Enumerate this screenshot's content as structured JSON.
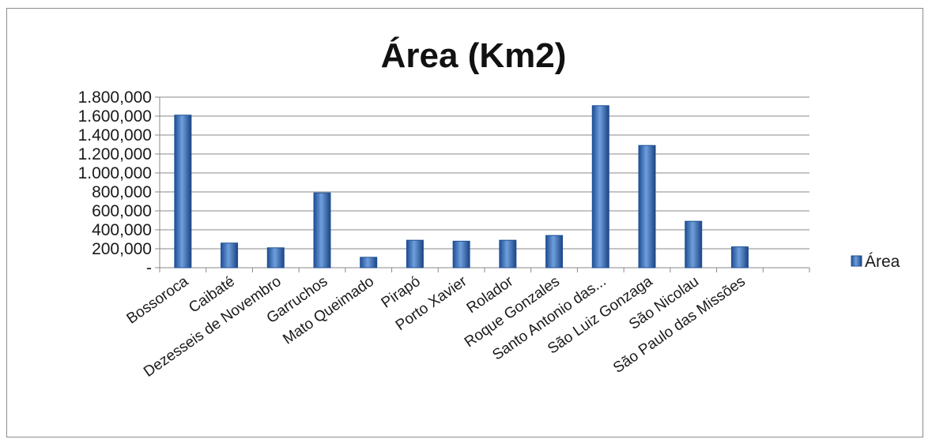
{
  "chart_data": {
    "type": "bar",
    "title": "Área (Km2)",
    "xlabel": "",
    "ylabel": "",
    "ylim": [
      0,
      1800000
    ],
    "grid": true,
    "legend_position": "right",
    "y_ticks": [
      0,
      200000,
      400000,
      600000,
      800000,
      1000000,
      1200000,
      1400000,
      1600000,
      1800000
    ],
    "y_tick_labels": [
      "-",
      "200,000",
      "400,000",
      "600,000",
      "800,000",
      "1.000,000",
      "1.200,000",
      "1.400,000",
      "1.600,000",
      "1.800,000"
    ],
    "categories": [
      "Bossoroca",
      "Caibaté",
      "Dezesseis de Novembro",
      "Garruchos",
      "Mato Queimado",
      "Pirapó",
      "Porto Xavier",
      "Rolador",
      "Roque Gonzales",
      "Santo Antonio das...",
      "São Luiz Gonzaga",
      "São Nicolau",
      "São Paulo das Missões"
    ],
    "series": [
      {
        "name": "Área",
        "color": "#3a6fb5",
        "values": [
          1610000,
          260000,
          210000,
          790000,
          110000,
          290000,
          280000,
          290000,
          340000,
          1710000,
          1290000,
          490000,
          220000
        ]
      }
    ]
  }
}
